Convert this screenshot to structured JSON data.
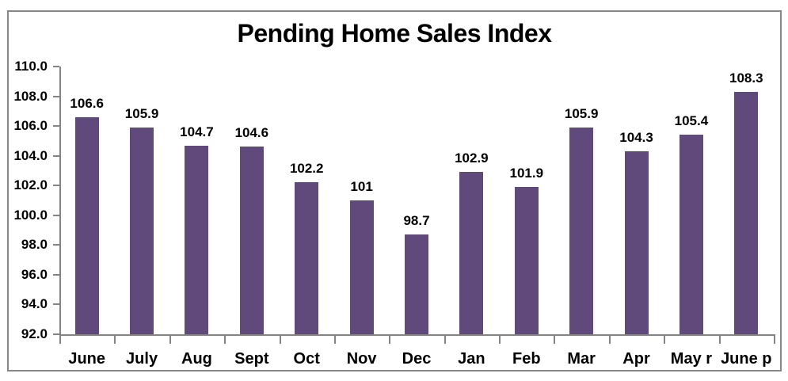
{
  "chart_data": {
    "type": "bar",
    "title": "Pending Home Sales Index",
    "categories": [
      "June",
      "July",
      "Aug",
      "Sept",
      "Oct",
      "Nov",
      "Dec",
      "Jan",
      "Feb",
      "Mar",
      "Apr",
      "May r",
      "June p"
    ],
    "values": [
      106.6,
      105.9,
      104.7,
      104.6,
      102.2,
      101,
      98.7,
      102.9,
      101.9,
      105.9,
      104.3,
      105.4,
      108.3
    ],
    "value_labels": [
      "106.6",
      "105.9",
      "104.7",
      "104.6",
      "102.2",
      "101",
      "98.7",
      "102.9",
      "101.9",
      "105.9",
      "104.3",
      "105.4",
      "108.3"
    ],
    "xlabel": "",
    "ylabel": "",
    "ylim": [
      92.0,
      110.0
    ],
    "ytick_step": 2.0,
    "ytick_labels": [
      "92.0",
      "94.0",
      "96.0",
      "98.0",
      "100.0",
      "102.0",
      "104.0",
      "106.0",
      "108.0",
      "110.0"
    ],
    "grid": false,
    "legend": "none",
    "bar_color": "#604A7B",
    "axis_color": "#848484",
    "frame_border_color": "#868686",
    "background": "#FFFFFF"
  }
}
